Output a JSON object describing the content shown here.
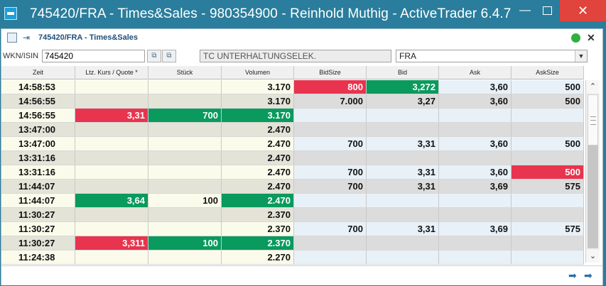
{
  "window": {
    "title": "745420/FRA - Times&Sales - 980354900 - Reinhold Muthig - ActiveTrader 6.4.7",
    "min_glyph": "—",
    "close_glyph": "✕"
  },
  "panel": {
    "title": "745420/FRA - Times&Sales",
    "close_glyph": "✕",
    "status_color": "#2fb040"
  },
  "inputs": {
    "wkn_label": "WKN/ISIN",
    "wkn_value": "745420",
    "name_value": "TC UNTERHALTUNGSELEK.",
    "exchange_value": "FRA"
  },
  "columns": [
    "Zeit",
    "Ltz. Kurs / Quote *",
    "Stück",
    "Volumen",
    "BidSize",
    "Bid",
    "Ask",
    "AskSize"
  ],
  "colors": {
    "red": "#e8344e",
    "green": "#0a9a5e"
  },
  "rows": [
    {
      "zeit": "14:58:53",
      "kurs": "",
      "stueck": "",
      "volumen": "3.170",
      "bidsize": "800",
      "bid": "3,272",
      "ask": "3,60",
      "asksize": "500",
      "hl": {
        "bidsize": "red",
        "bid": "green"
      }
    },
    {
      "zeit": "14:56:55",
      "kurs": "",
      "stueck": "",
      "volumen": "3.170",
      "bidsize": "7.000",
      "bid": "3,27",
      "ask": "3,60",
      "asksize": "500",
      "hl": {}
    },
    {
      "zeit": "14:56:55",
      "kurs": "3,31",
      "stueck": "700",
      "volumen": "3.170",
      "bidsize": "",
      "bid": "",
      "ask": "",
      "asksize": "",
      "hl": {
        "kurs": "red",
        "stueck": "green",
        "volumen": "green"
      }
    },
    {
      "zeit": "13:47:00",
      "kurs": "",
      "stueck": "",
      "volumen": "2.470",
      "bidsize": "",
      "bid": "",
      "ask": "",
      "asksize": "",
      "hl": {}
    },
    {
      "zeit": "13:47:00",
      "kurs": "",
      "stueck": "",
      "volumen": "2.470",
      "bidsize": "700",
      "bid": "3,31",
      "ask": "3,60",
      "asksize": "500",
      "hl": {}
    },
    {
      "zeit": "13:31:16",
      "kurs": "",
      "stueck": "",
      "volumen": "2.470",
      "bidsize": "",
      "bid": "",
      "ask": "",
      "asksize": "",
      "hl": {}
    },
    {
      "zeit": "13:31:16",
      "kurs": "",
      "stueck": "",
      "volumen": "2.470",
      "bidsize": "700",
      "bid": "3,31",
      "ask": "3,60",
      "asksize": "500",
      "hl": {
        "asksize": "red"
      }
    },
    {
      "zeit": "11:44:07",
      "kurs": "",
      "stueck": "",
      "volumen": "2.470",
      "bidsize": "700",
      "bid": "3,31",
      "ask": "3,69",
      "asksize": "575",
      "hl": {}
    },
    {
      "zeit": "11:44:07",
      "kurs": "3,64",
      "stueck": "100",
      "volumen": "2.470",
      "bidsize": "",
      "bid": "",
      "ask": "",
      "asksize": "",
      "hl": {
        "kurs": "green",
        "volumen": "green"
      }
    },
    {
      "zeit": "11:30:27",
      "kurs": "",
      "stueck": "",
      "volumen": "2.370",
      "bidsize": "",
      "bid": "",
      "ask": "",
      "asksize": "",
      "hl": {}
    },
    {
      "zeit": "11:30:27",
      "kurs": "",
      "stueck": "",
      "volumen": "2.370",
      "bidsize": "700",
      "bid": "3,31",
      "ask": "3,69",
      "asksize": "575",
      "hl": {}
    },
    {
      "zeit": "11:30:27",
      "kurs": "3,311",
      "stueck": "100",
      "volumen": "2.370",
      "bidsize": "",
      "bid": "",
      "ask": "",
      "asksize": "",
      "hl": {
        "kurs": "red",
        "stueck": "green",
        "volumen": "green"
      }
    },
    {
      "zeit": "11:24:38",
      "kurs": "",
      "stueck": "",
      "volumen": "2.270",
      "bidsize": "",
      "bid": "",
      "ask": "",
      "asksize": "",
      "hl": {}
    }
  ]
}
